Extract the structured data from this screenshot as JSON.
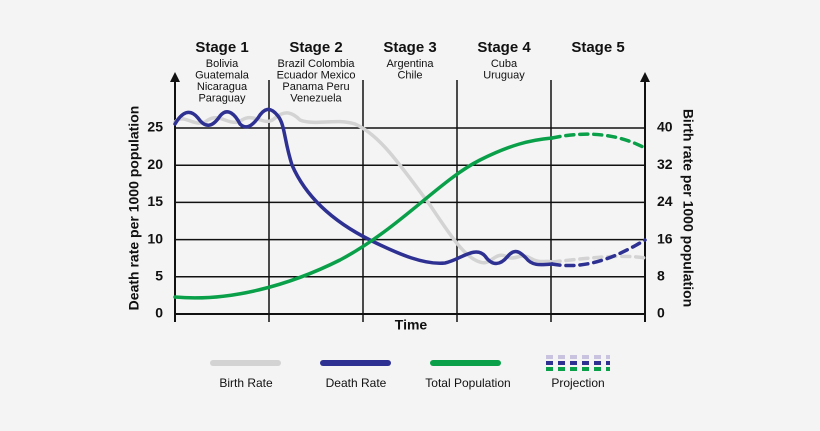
{
  "stages": [
    {
      "name": "Stage 1",
      "countries": [
        "Bolivia",
        "Guatemala",
        "Nicaragua",
        "Paraguay"
      ]
    },
    {
      "name": "Stage 2",
      "countries": [
        "Brazil  Colombia",
        "Ecuador  Mexico",
        "Panama  Peru",
        "Venezuela"
      ]
    },
    {
      "name": "Stage 3",
      "countries": [
        "Argentina",
        "Chile"
      ]
    },
    {
      "name": "Stage 4",
      "countries": [
        "Cuba",
        "Uruguay"
      ]
    },
    {
      "name": "Stage 5",
      "countries": []
    }
  ],
  "left_axis": {
    "label": "Death rate per 1000 population",
    "ticks": [
      25,
      20,
      15,
      10,
      5,
      0
    ]
  },
  "right_axis": {
    "label": "Birth rate per 1000 population",
    "ticks": [
      40,
      32,
      24,
      16,
      8,
      0
    ]
  },
  "x_axis": {
    "label": "Time"
  },
  "legend": [
    "Birth Rate",
    "Death Rate",
    "Total Population",
    "Projection"
  ]
}
